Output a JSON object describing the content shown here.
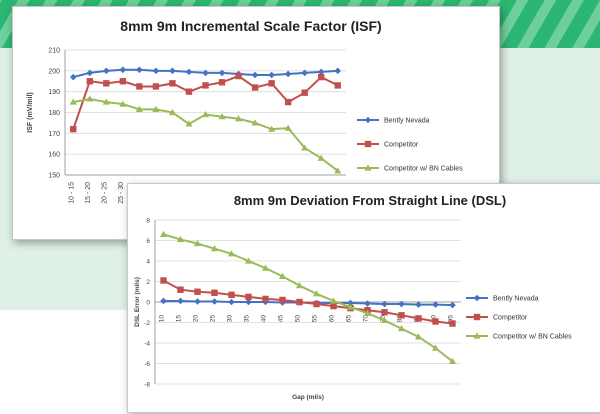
{
  "chart_data": [
    {
      "type": "line",
      "title": "8mm 9m Incremental Scale Factor (ISF)",
      "ylabel": "ISF (mV/mil)",
      "xlabel": "",
      "ylim": [
        150,
        210
      ],
      "yticks": [
        150,
        160,
        170,
        180,
        190,
        200,
        210
      ],
      "categories": [
        "10 - 15",
        "15 - 20",
        "20 - 25",
        "25 - 30",
        "30 - 35",
        "35 - 40",
        "40 - 45",
        "45 - 50",
        "50 - 55",
        "55 - 60",
        "60 - 65",
        "65 - 70",
        "70 - 75",
        "75 - 80",
        "80 - 85",
        "85 - 90",
        "90 - 95"
      ],
      "visible_category_count": 4,
      "legend_position": "right",
      "grid": true,
      "series": [
        {
          "name": "Bently Nevada",
          "color": "#4472c4",
          "marker": "diamond",
          "values": [
            197,
            199,
            200,
            200.5,
            200.5,
            200,
            200,
            199.5,
            199,
            199,
            198.5,
            198,
            198,
            198.5,
            199,
            199.5,
            200
          ]
        },
        {
          "name": "Competitor",
          "color": "#c0504d",
          "marker": "square",
          "values": [
            172,
            195,
            194,
            195,
            192.5,
            192.5,
            194,
            190,
            193,
            194.5,
            197.5,
            192,
            194,
            185,
            189.5,
            197,
            193
          ]
        },
        {
          "name": "Competitor w/ BN Cables",
          "color": "#9bbb59",
          "marker": "triangle",
          "values": [
            185,
            186.5,
            185,
            184,
            181.5,
            181.5,
            180,
            174.5,
            179,
            178,
            177,
            175,
            172,
            172.5,
            163,
            158,
            152
          ]
        }
      ]
    },
    {
      "type": "line",
      "title": "8mm 9m Deviation From Straight Line (DSL)",
      "ylabel": "DSL Error (mils)",
      "xlabel": "Gap (mils)",
      "ylim": [
        -8,
        8
      ],
      "yticks": [
        -8,
        -6,
        -4,
        -2,
        0,
        2,
        4,
        6,
        8
      ],
      "categories": [
        "10",
        "15",
        "20",
        "25",
        "30",
        "35",
        "40",
        "45",
        "50",
        "55",
        "60",
        "65",
        "70",
        "75",
        "80",
        "85",
        "90",
        "95"
      ],
      "legend_position": "right",
      "grid": true,
      "series": [
        {
          "name": "Bently Nevada",
          "color": "#4472c4",
          "marker": "diamond",
          "values": [
            0.1,
            0.1,
            0.05,
            0.05,
            0,
            0,
            0,
            -0.05,
            -0.05,
            -0.1,
            -0.1,
            -0.1,
            -0.15,
            -0.2,
            -0.2,
            -0.25,
            -0.25,
            -0.3
          ]
        },
        {
          "name": "Competitor",
          "color": "#c0504d",
          "marker": "square",
          "values": [
            2.1,
            1.2,
            1.0,
            0.9,
            0.7,
            0.5,
            0.3,
            0.2,
            0,
            -0.2,
            -0.4,
            -0.6,
            -0.8,
            -1.0,
            -1.3,
            -1.6,
            -1.9,
            -2.1
          ]
        },
        {
          "name": "Competitor w/ BN Cables",
          "color": "#9bbb59",
          "marker": "triangle",
          "values": [
            6.6,
            6.1,
            5.7,
            5.2,
            4.7,
            4.0,
            3.3,
            2.5,
            1.6,
            0.8,
            0.1,
            -0.5,
            -1.1,
            -1.8,
            -2.6,
            -3.4,
            -4.5,
            -5.8
          ]
        }
      ]
    }
  ]
}
